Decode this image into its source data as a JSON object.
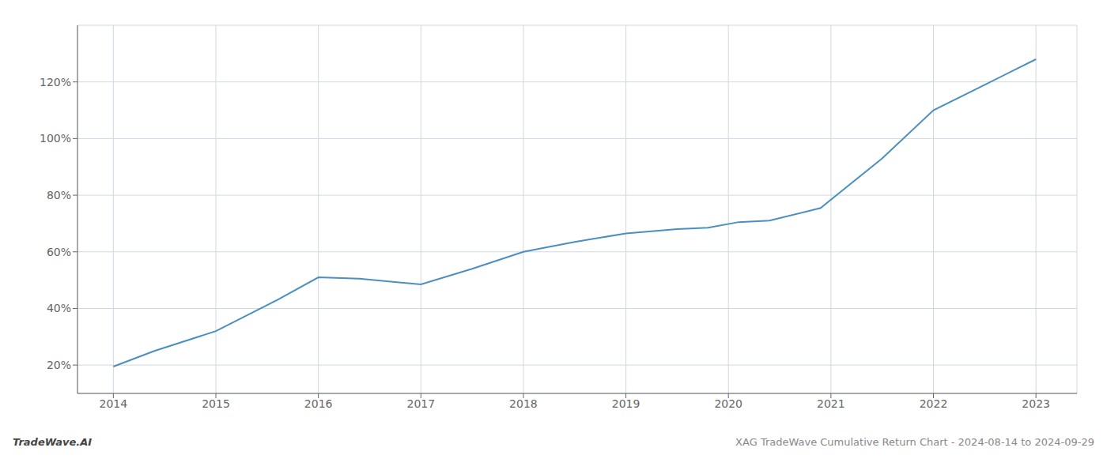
{
  "chart_data": {
    "type": "line",
    "x": [
      2014.0,
      2014.4,
      2015.0,
      2015.6,
      2016.0,
      2016.4,
      2017.0,
      2017.5,
      2018.0,
      2018.5,
      2019.0,
      2019.5,
      2019.8,
      2020.1,
      2020.4,
      2020.9,
      2021.5,
      2022.0,
      2022.5,
      2023.0
    ],
    "values": [
      19.5,
      25.0,
      32.0,
      43.0,
      51.0,
      50.5,
      48.5,
      54.0,
      60.0,
      63.5,
      66.5,
      68.0,
      68.5,
      70.5,
      71.0,
      75.5,
      93.0,
      110.0,
      119.0,
      128.0
    ],
    "color": "#4a8fc0",
    "xlim": [
      2013.65,
      2023.4
    ],
    "ylim": [
      10,
      140
    ],
    "xticks": [
      2014,
      2015,
      2016,
      2017,
      2018,
      2019,
      2020,
      2021,
      2022,
      2023
    ],
    "yticks": [
      {
        "value": 20,
        "label": "20%"
      },
      {
        "value": 40,
        "label": "40%"
      },
      {
        "value": 60,
        "label": "60%"
      },
      {
        "value": 80,
        "label": "80%"
      },
      {
        "value": 100,
        "label": "100%"
      },
      {
        "value": 120,
        "label": "120%"
      }
    ],
    "grid": true,
    "annotations": [
      "TradeWave.AI",
      "XAG TradeWave Cumulative Return Chart - 2024-08-14 to 2024-09-29"
    ]
  }
}
